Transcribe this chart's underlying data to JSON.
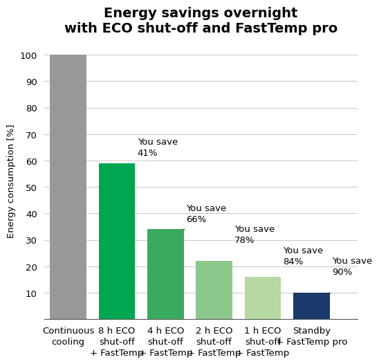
{
  "title": "Energy savings overnight\nwith ECO shut-off and FastTemp pro",
  "ylabel": "Energy consumption [%]",
  "categories": [
    "Continuous\ncooling",
    "8 h ECO\nshut-off\n+ FastTemp",
    "4 h ECO\nshut-off\n+ FastTemp",
    "2 h ECO\nshut-off\n+ FastTemp",
    "1 h ECO\nshut-off\n+ FastTemp",
    "Standby\n+ FastTemp pro"
  ],
  "values": [
    100,
    59,
    34,
    22,
    16,
    10
  ],
  "bar_colors": [
    "#999999",
    "#00a651",
    "#3aaa5e",
    "#8dc88d",
    "#b5d9a0",
    "#1a3a6b"
  ],
  "savings_labels": [
    "",
    "You save\n41%",
    "You save\n66%",
    "You save\n78%",
    "You save\n84%",
    "You save\n90%"
  ],
  "ylim": [
    0,
    105
  ],
  "yticks": [
    10,
    20,
    30,
    40,
    50,
    60,
    70,
    80,
    90,
    100
  ],
  "background_color": "#ffffff",
  "title_fontsize": 14,
  "label_fontsize": 9.5,
  "tick_fontsize": 9.5,
  "annotation_fontsize": 9.5
}
